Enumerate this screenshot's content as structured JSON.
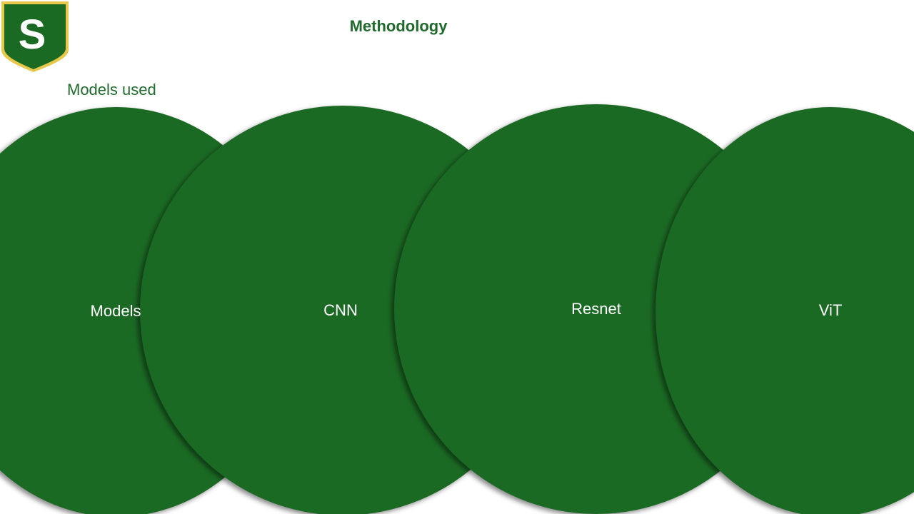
{
  "slide": {
    "title": "Methodology",
    "subtitle": "Models used",
    "logo_letter": "S"
  },
  "colors": {
    "brand_green": "#1b6a24",
    "logo_gold": "#e8c84a",
    "text_green": "#1e6b2c"
  },
  "circles": [
    {
      "label": "Models"
    },
    {
      "label": "CNN"
    },
    {
      "label": "Resnet"
    },
    {
      "label": "ViT"
    }
  ]
}
